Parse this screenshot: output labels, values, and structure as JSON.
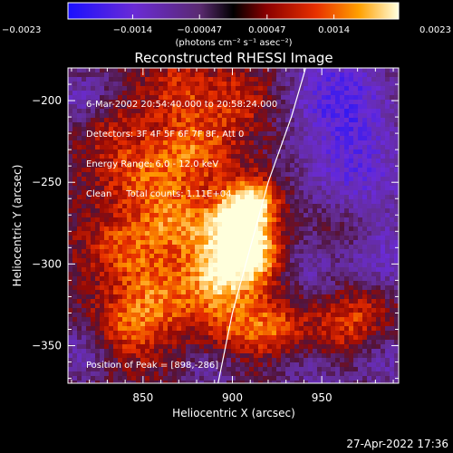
{
  "chart_data": {
    "type": "heatmap",
    "title": "Reconstructed RHESSI Image",
    "xlabel": "Heliocentric X (arcsec)",
    "ylabel": "Heliocentric Y (arcsec)",
    "xlim": [
      808,
      993
    ],
    "ylim": [
      -373,
      -180
    ],
    "xticks": [
      850,
      900,
      950
    ],
    "yticks": [
      -200,
      -250,
      -300,
      -350
    ],
    "xtick_labels": [
      "850",
      "900",
      "950"
    ],
    "ytick_labels": [
      "−200",
      "−250",
      "−300",
      "−350"
    ],
    "colorbar": {
      "range": [
        -0.0023,
        0.0023
      ],
      "tick_labels": [
        "−0.0023",
        "−0.0014",
        "−0.00047",
        "0.00047",
        "0.0014",
        "0.0023"
      ],
      "tick_values": [
        -0.0023,
        -0.0014,
        -0.00047,
        0.00047,
        0.0014,
        0.0023
      ],
      "units_label": "(photons cm⁻² s⁻¹ asec⁻²)"
    },
    "info_lines": [
      "6-Mar-2002 20:54:40.000 to 20:58:24.000",
      "Detectors: 3F 4F 5F 6F 7F 8F, Att 0",
      "Energy Range: 6.0 - 12.0 keV",
      "Clean     Total counts: 1.11E+04"
    ],
    "peak_label": "Position of Peak = [898,-286]",
    "peak_position": [
      898,
      -286
    ],
    "limb_points": [
      [
        892,
        -373
      ],
      [
        900,
        -330
      ],
      [
        910,
        -290
      ],
      [
        920,
        -250
      ],
      [
        933,
        -210
      ],
      [
        941,
        -180
      ]
    ],
    "blobs": [
      {
        "x": 903,
        "y": -281,
        "v": 1.0,
        "s": 13
      },
      {
        "x": 910,
        "y": -262,
        "v": 0.85,
        "s": 11
      },
      {
        "x": 893,
        "y": -306,
        "v": 0.75,
        "s": 13
      },
      {
        "x": 915,
        "y": -298,
        "v": 0.6,
        "s": 12
      },
      {
        "x": 870,
        "y": -275,
        "v": 0.55,
        "s": 14
      },
      {
        "x": 850,
        "y": -245,
        "v": 0.45,
        "s": 16
      },
      {
        "x": 880,
        "y": -230,
        "v": 0.5,
        "s": 15
      },
      {
        "x": 840,
        "y": -290,
        "v": 0.45,
        "s": 15
      },
      {
        "x": 860,
        "y": -320,
        "v": 0.5,
        "s": 15
      },
      {
        "x": 900,
        "y": -335,
        "v": 0.45,
        "s": 14
      },
      {
        "x": 925,
        "y": -340,
        "v": 0.45,
        "s": 12
      },
      {
        "x": 960,
        "y": -345,
        "v": 0.4,
        "s": 14
      },
      {
        "x": 975,
        "y": -325,
        "v": 0.35,
        "s": 12
      },
      {
        "x": 840,
        "y": -340,
        "v": 0.45,
        "s": 14
      },
      {
        "x": 870,
        "y": -195,
        "v": 0.35,
        "s": 14
      },
      {
        "x": 905,
        "y": -200,
        "v": 0.35,
        "s": 13
      },
      {
        "x": 830,
        "y": -215,
        "v": 0.3,
        "s": 12
      },
      {
        "x": 960,
        "y": -280,
        "v": 0.25,
        "s": 12
      },
      {
        "x": 970,
        "y": -245,
        "v": -0.6,
        "s": 25
      },
      {
        "x": 960,
        "y": -195,
        "v": -0.7,
        "s": 22
      },
      {
        "x": 985,
        "y": -300,
        "v": -0.5,
        "s": 18
      },
      {
        "x": 815,
        "y": -200,
        "v": -0.5,
        "s": 14
      },
      {
        "x": 815,
        "y": -355,
        "v": -0.45,
        "s": 14
      },
      {
        "x": 945,
        "y": -365,
        "v": -0.4,
        "s": 16
      },
      {
        "x": 985,
        "y": -360,
        "v": -0.4,
        "s": 14
      },
      {
        "x": 888,
        "y": -365,
        "v": -0.35,
        "s": 12
      },
      {
        "x": 940,
        "y": -300,
        "v": -0.4,
        "s": 14
      }
    ]
  },
  "footer": {
    "timestamp": "27-Apr-2022 17:36"
  }
}
